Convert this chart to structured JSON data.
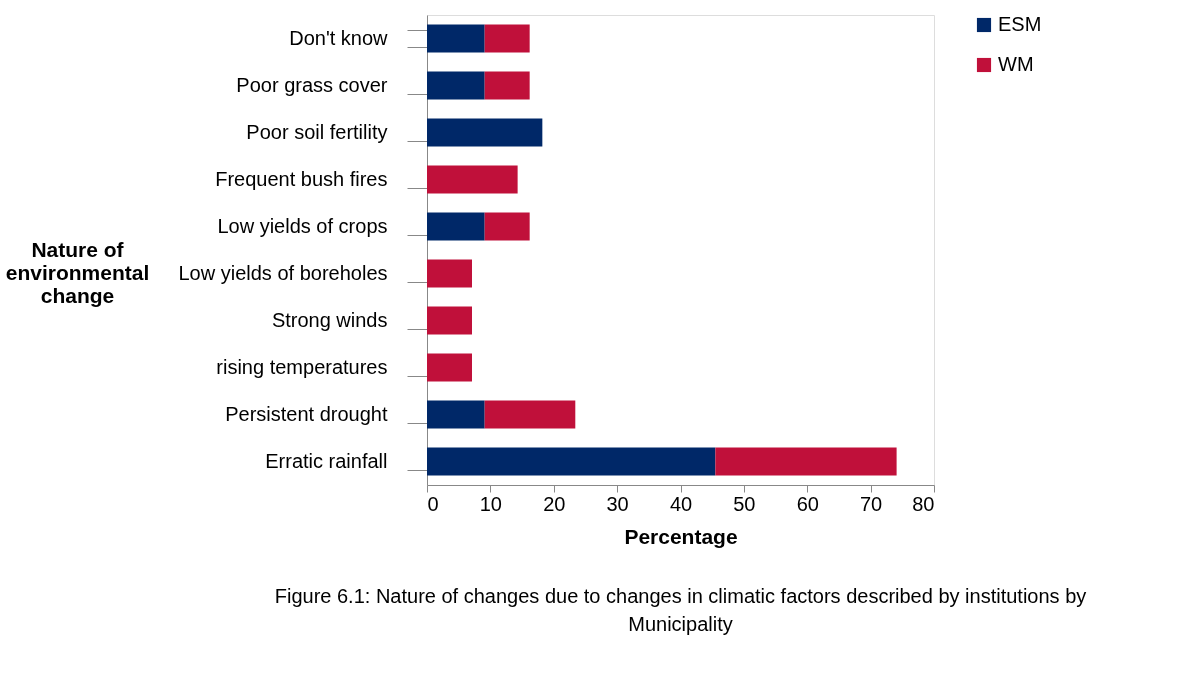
{
  "chart_data": {
    "type": "bar",
    "orientation": "horizontal",
    "stacked": true,
    "categories": [
      "Don't know",
      "Poor grass cover",
      "Poor soil fertility",
      "Frequent bush fires",
      "Low yields of crops",
      "Low yields of boreholes",
      "Strong winds",
      "rising temperatures",
      "Persistent drought",
      "Erratic rainfall"
    ],
    "series": [
      {
        "name": "ESM",
        "color": "#002868",
        "values": [
          9.1,
          9.1,
          18.2,
          0,
          9.1,
          0,
          0,
          0,
          9.1,
          45.5
        ]
      },
      {
        "name": "WM",
        "color": "#c0103a",
        "values": [
          7.1,
          7.1,
          0,
          14.3,
          7.1,
          7.1,
          7.1,
          7.1,
          14.3,
          28.6
        ]
      }
    ],
    "xlim": [
      0,
      80
    ],
    "xticks": [
      0,
      10,
      20,
      30,
      40,
      50,
      60,
      70,
      80
    ],
    "xlabel": "Percentage",
    "ylabel": "Nature of environmental change",
    "legend": "right",
    "grid": false,
    "annotations": [
      "Figure 6.1: Nature of changes due to changes in climatic factors described by institutions by Municipality"
    ]
  }
}
